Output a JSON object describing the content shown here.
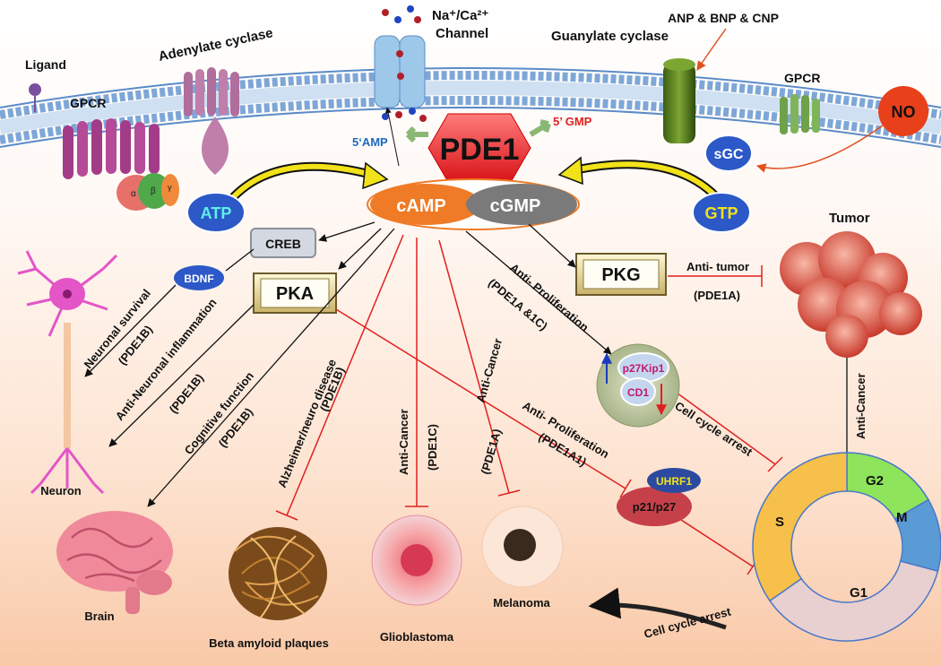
{
  "membrane": {
    "ligand": "Ligand",
    "gpcr_left": "GPCR",
    "adenylate_cyclase": "Adenylate cyclase",
    "channel_line1": "Na⁺/Ca²⁺",
    "channel_line2": "Channel",
    "guanylate_cyclase": "Guanylate cyclase",
    "natriuretic": "ANP & BNP & CNP",
    "gpcr_right": "GPCR",
    "no": "NO",
    "sgc": "sGC",
    "g_alpha": "α",
    "g_beta": "β",
    "g_gamma": "γ"
  },
  "core": {
    "pde1": "PDE1",
    "amp5": "5‘AMP",
    "gmp5": "5’ GMP",
    "atp": "ATP",
    "gtp": "GTP",
    "camp": "cAMP",
    "cgmp": "cGMP"
  },
  "kinases": {
    "creb": "CREB",
    "bdnf": "BDNF",
    "pka": "PKA",
    "pkg": "PKG"
  },
  "effects": {
    "neuronal_survival": "Neuronal survival",
    "neuronal_survival_iso": "(PDE1B)",
    "anti_inflammation": "Anti-Neuronal inflammation",
    "anti_inflammation_iso": "(PDE1B)",
    "cognitive": "Cognitive function",
    "cognitive_iso": "(PDE1B)",
    "alzheimer": "Alzheimer/neuro disease",
    "alzheimer_iso": "(PDE1B)",
    "anticancer_gbm": "Anti-Cancer",
    "anticancer_gbm_iso": "(PDE1C)",
    "anticancer_mel": "Anti-Cancer",
    "anticancer_mel_iso": "(PDE1A)",
    "antiprolif_pka": "Anti- Proliferation",
    "antiprolif_pka_iso": "(PDE1A1)",
    "antiprolif_pkg": "Anti- Proliferation",
    "antiprolif_pkg_iso": "(PDE1A &1C)",
    "antitumor": "Anti- tumor",
    "antitumor_iso": "(PDE1A)",
    "cell_cycle_arrest_1": "Cell cycle arrest",
    "cell_cycle_arrest_2": "Cell cycle arrest",
    "anticancer_tumor": "Anti-Cancer"
  },
  "molecules": {
    "p27kip1": "p27Kip1",
    "cd1": "CD1",
    "uhrf1": "UHRF1",
    "p21p27": "p21/p27"
  },
  "outcomes": {
    "neuron": "Neuron",
    "brain": "Brain",
    "plaques": "Beta amyloid plaques",
    "glioblastoma": "Glioblastoma",
    "melanoma": "Melanoma",
    "tumor": "Tumor"
  },
  "cell_cycle": {
    "g1": "G1",
    "s": "S",
    "g2": "G2",
    "m": "M"
  },
  "colors": {
    "pde1": "#e8202a",
    "camp": "#ef7b26",
    "cgmp": "#7a7a7a",
    "inhibit": "#e02020",
    "g1": "#e8cfd0",
    "s": "#f6c04a",
    "g2": "#8ee45a",
    "m": "#5b9bd5"
  }
}
